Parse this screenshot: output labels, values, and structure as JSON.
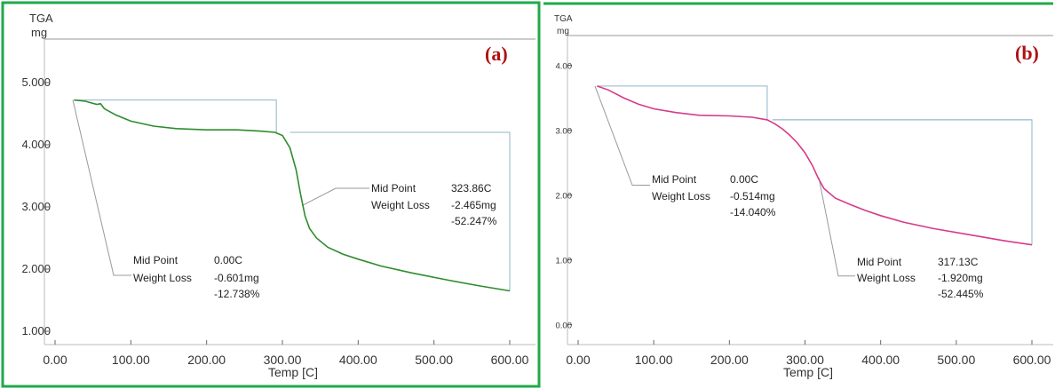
{
  "chart_data": [
    {
      "type": "line",
      "panel_label": "(a)",
      "y_title_top": "TGA",
      "y_title_unit": "mg",
      "xlabel": "Temp  [C]",
      "xlim": [
        0,
        600
      ],
      "ylim": [
        0.9,
        5.7
      ],
      "x_ticks": [
        "0.00",
        "100.00",
        "200.00",
        "300.00",
        "400.00",
        "500.00",
        "600.00"
      ],
      "x_tick_values": [
        0,
        100,
        200,
        300,
        400,
        500,
        600
      ],
      "y_ticks": [
        "1.000",
        "2.000",
        "3.000",
        "4.000",
        "5.000"
      ],
      "y_tick_values": [
        1,
        2,
        3,
        4,
        5
      ],
      "line_color": "#2e8b2e",
      "series": [
        {
          "x": [
            25,
            40,
            55,
            60,
            65,
            80,
            100,
            130,
            160,
            200,
            240,
            270,
            290,
            300,
            310,
            318,
            324,
            330,
            336,
            345,
            360,
            380,
            400,
            430,
            470,
            520,
            560,
            600
          ],
          "y": [
            4.72,
            4.7,
            4.65,
            4.66,
            4.58,
            4.48,
            4.38,
            4.3,
            4.26,
            4.24,
            4.24,
            4.22,
            4.2,
            4.15,
            3.95,
            3.6,
            3.2,
            2.85,
            2.65,
            2.5,
            2.35,
            2.24,
            2.16,
            2.05,
            1.94,
            1.82,
            1.73,
            1.65
          ]
        }
      ],
      "annotations": [
        {
          "mid_point_label": "Mid Point",
          "mid_point_value": "0.00C",
          "weight_loss_label": "Weight Loss",
          "weight_loss_mg": "-0.601mg",
          "weight_loss_pct": "-12.738%"
        },
        {
          "mid_point_label": "Mid Point",
          "mid_point_value": "323.86C",
          "weight_loss_label": "Weight Loss",
          "weight_loss_mg": "-2.465mg",
          "weight_loss_pct": "-52.247%"
        }
      ]
    },
    {
      "type": "line",
      "panel_label": "(b)",
      "y_title_top": "TGA",
      "y_title_unit": "mg",
      "xlabel": "Temp  [C]",
      "xlim": [
        0,
        600
      ],
      "ylim": [
        -0.2,
        4.2
      ],
      "x_ticks": [
        "0.00",
        "100.00",
        "200.00",
        "300.00",
        "400.00",
        "500.00",
        "600.00"
      ],
      "x_tick_values": [
        0,
        100,
        200,
        300,
        400,
        500,
        600
      ],
      "y_ticks": [
        "0.00",
        "1.00",
        "2.00",
        "3.00",
        "4.00"
      ],
      "y_tick_values": [
        0,
        1,
        2,
        3,
        4
      ],
      "line_color": "#d63a8a",
      "series": [
        {
          "x": [
            25,
            40,
            60,
            80,
            100,
            130,
            160,
            200,
            230,
            250,
            260,
            270,
            280,
            290,
            300,
            310,
            317,
            325,
            340,
            360,
            380,
            400,
            430,
            470,
            520,
            560,
            600
          ],
          "y": [
            3.68,
            3.62,
            3.5,
            3.4,
            3.33,
            3.27,
            3.23,
            3.22,
            3.2,
            3.16,
            3.1,
            3.02,
            2.92,
            2.8,
            2.65,
            2.45,
            2.27,
            2.1,
            1.95,
            1.85,
            1.76,
            1.68,
            1.58,
            1.48,
            1.38,
            1.3,
            1.23
          ]
        }
      ],
      "annotations": [
        {
          "mid_point_label": "Mid Point",
          "mid_point_value": "0.00C",
          "weight_loss_label": "Weight Loss",
          "weight_loss_mg": "-0.514mg",
          "weight_loss_pct": "-14.040%"
        },
        {
          "mid_point_label": "Mid Point",
          "mid_point_value": "317.13C",
          "weight_loss_label": "Weight Loss",
          "weight_loss_mg": "-1.920mg",
          "weight_loss_pct": "-52.445%"
        }
      ]
    }
  ]
}
